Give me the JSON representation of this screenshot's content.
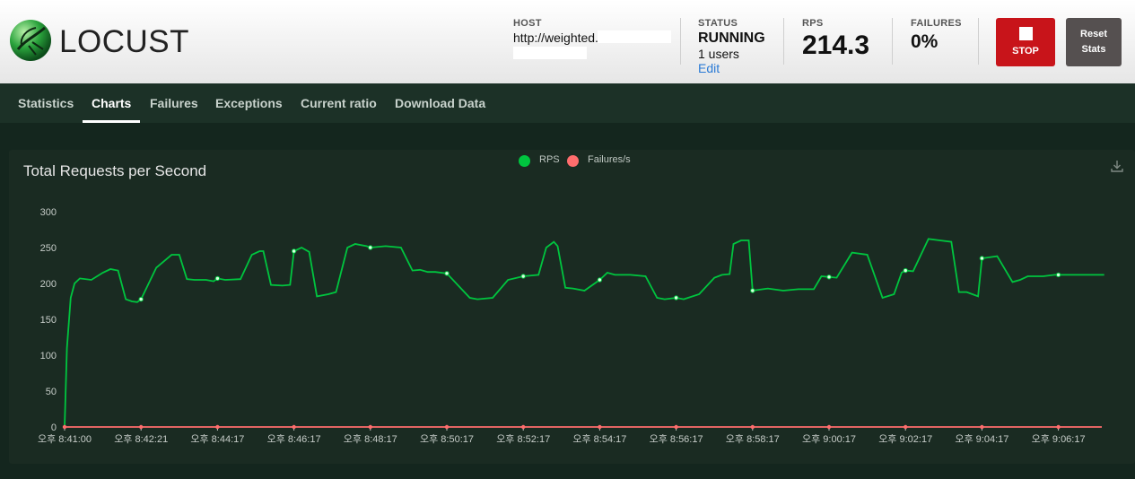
{
  "header": {
    "logo_text": "LOCUST",
    "host": {
      "label": "HOST",
      "value": "http://weighted."
    },
    "status": {
      "label": "STATUS",
      "value": "RUNNING",
      "users": "1 users",
      "edit": "Edit"
    },
    "rps": {
      "label": "RPS",
      "value": "214.3"
    },
    "failures": {
      "label": "FAILURES",
      "value": "0%"
    },
    "stop_label": "STOP",
    "reset_line1": "Reset",
    "reset_line2": "Stats"
  },
  "tabs": [
    {
      "label": "Statistics"
    },
    {
      "label": "Charts",
      "active": true
    },
    {
      "label": "Failures"
    },
    {
      "label": "Exceptions"
    },
    {
      "label": "Current ratio"
    },
    {
      "label": "Download Data"
    }
  ],
  "chart_data": {
    "type": "line",
    "title": "Total Requests per Second",
    "legend": [
      "RPS",
      "Failures/s"
    ],
    "legend_position": "top-center",
    "colors": {
      "rps": "#00c53f",
      "failures": "#ff6d6d"
    },
    "ylim": [
      0,
      300
    ],
    "yticks": [
      0,
      50,
      100,
      150,
      200,
      250,
      300
    ],
    "xticks": [
      "오후 8:41:00",
      "오후 8:42:21",
      "오후 8:44:17",
      "오후 8:46:17",
      "오후 8:48:17",
      "오후 8:50:17",
      "오후 8:52:17",
      "오후 8:54:17",
      "오후 8:56:17",
      "오후 8:58:17",
      "오후 9:00:17",
      "오후 9:02:17",
      "오후 9:04:17",
      "오후 9:06:17"
    ],
    "series": [
      {
        "name": "RPS",
        "x_index": [
          0,
          0.03,
          0.08,
          0.13,
          0.2,
          0.35,
          0.5,
          0.6,
          0.7,
          0.8,
          0.88,
          0.95,
          1.0,
          1.2,
          1.4,
          1.5,
          1.6,
          1.7,
          1.85,
          1.95,
          2.0,
          2.1,
          2.3,
          2.45,
          2.55,
          2.6,
          2.7,
          2.85,
          2.95,
          3.0,
          3.1,
          3.2,
          3.3,
          3.45,
          3.55,
          3.7,
          3.8,
          3.95,
          4.0,
          4.2,
          4.4,
          4.55,
          4.65,
          4.75,
          4.85,
          5.0,
          5.3,
          5.4,
          5.6,
          5.8,
          6.0,
          6.2,
          6.3,
          6.4,
          6.45,
          6.55,
          6.65,
          6.8,
          7.0,
          7.1,
          7.2,
          7.4,
          7.6,
          7.75,
          7.85,
          8.0,
          8.1,
          8.3,
          8.5,
          8.6,
          8.7,
          8.75,
          8.85,
          8.95,
          9.0,
          9.2,
          9.4,
          9.6,
          9.8,
          9.9,
          10.1,
          10.3,
          10.5,
          10.7,
          10.85,
          10.95,
          11.0,
          11.1,
          11.3,
          11.45,
          11.6,
          11.7,
          11.8,
          11.95,
          12.0,
          12.2,
          12.4,
          12.5,
          12.6,
          12.8,
          12.95,
          13.0,
          13.2,
          13.3,
          13.45,
          13.6
        ],
        "values": [
          0,
          110,
          180,
          200,
          207,
          205,
          215,
          220,
          218,
          178,
          175,
          174,
          178,
          222,
          240,
          240,
          206,
          205,
          205,
          203,
          207,
          205,
          206,
          240,
          245,
          245,
          198,
          197,
          198,
          245,
          250,
          244,
          182,
          185,
          188,
          250,
          255,
          252,
          250,
          252,
          250,
          218,
          219,
          216,
          216,
          214,
          180,
          178,
          180,
          205,
          210,
          212,
          250,
          258,
          252,
          194,
          193,
          190,
          205,
          215,
          212,
          212,
          210,
          180,
          178,
          180,
          178,
          185,
          208,
          212,
          213,
          255,
          260,
          260,
          190,
          193,
          190,
          192,
          192,
          210,
          208,
          243,
          240,
          180,
          185,
          215,
          218,
          217,
          262,
          260,
          258,
          188,
          188,
          182,
          235,
          238,
          202,
          205,
          210,
          210,
          212,
          212,
          212,
          212,
          212,
          212
        ]
      },
      {
        "name": "Failures/s",
        "values": [
          0
        ]
      }
    ]
  }
}
